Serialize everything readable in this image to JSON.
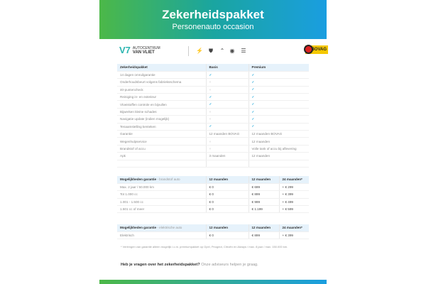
{
  "header": {
    "title": "Zekerheidspakket",
    "subtitle": "Personenauto occasion"
  },
  "logos": {
    "dealer_line1": "AUTOCENTRUM",
    "dealer_line2": "VAN VLIET",
    "bovag": "BOVAG"
  },
  "package_table": {
    "headers": [
      "Zekerheidspakket",
      "Basis",
      "Premium"
    ],
    "rows": [
      [
        "14 dagen omruilgarantie",
        "check",
        "check"
      ],
      [
        "Onderhoudsbeurt volgens fabrieksschema",
        "x",
        "check"
      ],
      [
        "40-puntencheck",
        "x",
        "check"
      ],
      [
        "Reiniging in- en exterieur",
        "check",
        "check"
      ],
      [
        "Vloeistoffen controle en bijvullen",
        "check",
        "check"
      ],
      [
        "Bijwerken kleine schades",
        "x",
        "check"
      ],
      [
        "Navigatie update (indien mogelijk)",
        "x",
        "check"
      ],
      [
        "Tenaamstelling kenteken",
        "check",
        "check"
      ],
      [
        "Garantie",
        "12 maanden BOVAG",
        "12 maanden BOVAG"
      ],
      [
        "Wegenhulpservice",
        "x",
        "12 maanden"
      ],
      [
        "Brandstof of accu",
        "x",
        "Volle tank of accu bij aflevering"
      ],
      [
        "Apk",
        "3 maanden",
        "12 maanden"
      ]
    ]
  },
  "fuel_table": {
    "title": "Mogelijkheden garantie",
    "title_suffix": "- brandstof auto",
    "headers": [
      "12 maanden",
      "12 maanden",
      "24 maanden*"
    ],
    "rows": [
      [
        "Max. 2 jaar / 50.000 km",
        "€ 0",
        "€ 699",
        "+ € 299"
      ],
      [
        "Tot 1.000 cc",
        "€ 0",
        "€ 899",
        "+ € 399"
      ],
      [
        "1.001 - 1.500 cc",
        "€ 0",
        "€ 999",
        "+ € 499"
      ],
      [
        "1.501 cc of meer",
        "€ 0",
        "€ 1.199",
        "+ € 599"
      ]
    ]
  },
  "electric_table": {
    "title": "Mogelijkheden garantie",
    "title_suffix": "- elektrische auto",
    "headers": [
      "12 maanden",
      "12 maanden",
      "24 maanden*"
    ],
    "rows": [
      [
        "Elektrisch",
        "€ 0",
        "€ 899",
        "+ € 399"
      ]
    ]
  },
  "footnote": "* Verlengen van garantie alleen mogelijk i.c.m. premiumpakket op Opel, Peugeot, Citroën en Always / max. 8 jaar / max. 150.000 km.",
  "question": {
    "bold": "Heb je vragen over het zekerheidspakket?",
    "text": "Onze adviseurs helpen je graag."
  },
  "colors": {
    "green": "#4cb848",
    "blue": "#1a9ee0",
    "check": "#1aa5d8"
  }
}
